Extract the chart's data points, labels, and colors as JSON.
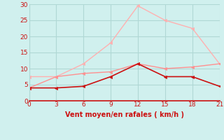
{
  "x": [
    0,
    3,
    6,
    9,
    12,
    15,
    18,
    21
  ],
  "line_rafales": [
    7.5,
    7.5,
    11.5,
    18.0,
    29.5,
    25.0,
    22.5,
    11.5
  ],
  "line_middle": [
    4.0,
    7.5,
    8.5,
    9.0,
    11.5,
    10.0,
    10.5,
    11.5
  ],
  "line_moyen": [
    4.0,
    4.0,
    4.5,
    7.5,
    11.5,
    7.5,
    7.5,
    4.5
  ],
  "color_rafales": "#ffb0b0",
  "color_middle": "#ff9090",
  "color_moyen": "#cc1111",
  "xlabel": "Vent moyen/en rafales ( km/h )",
  "ylim": [
    0,
    30
  ],
  "xlim": [
    0,
    21
  ],
  "yticks": [
    0,
    5,
    10,
    15,
    20,
    25,
    30
  ],
  "xticks": [
    0,
    3,
    6,
    9,
    12,
    15,
    18,
    21
  ],
  "bg_color": "#d0f0ee",
  "grid_color": "#b0d8d5",
  "tick_color": "#cc1111",
  "xlabel_color": "#cc1111",
  "axis_line_color": "#cc1111"
}
